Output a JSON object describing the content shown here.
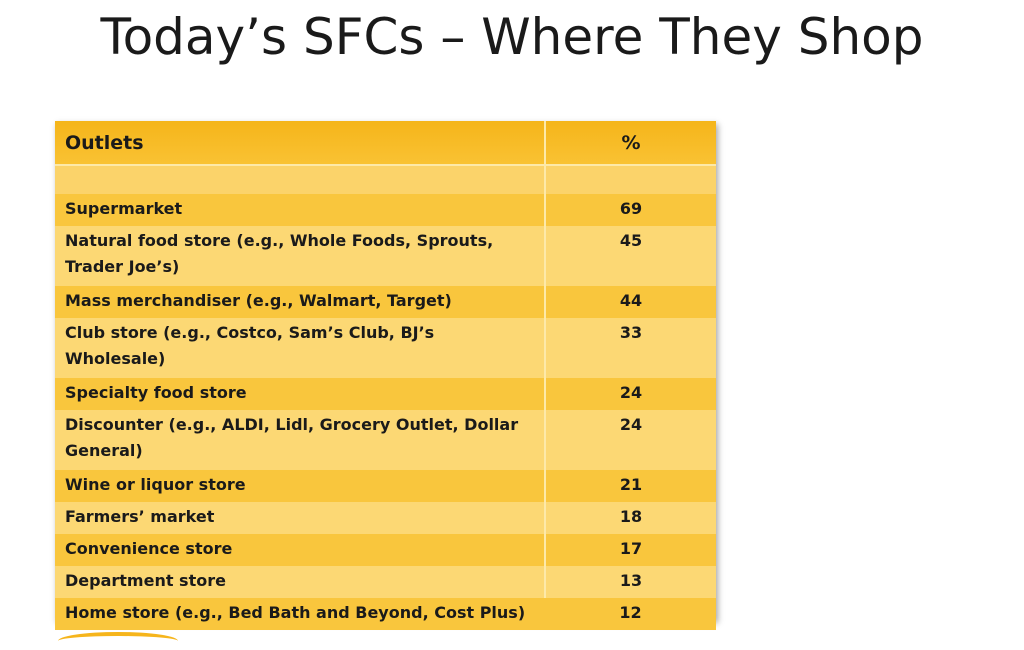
{
  "title": "Today’s SFCs – Where They Shop",
  "table": {
    "header": {
      "col1": "Outlets",
      "col2": "%"
    },
    "rows": [
      {
        "outlet": "Supermarket",
        "pct": "69"
      },
      {
        "outlet": "Natural food store (e.g., Whole Foods, Sprouts, Trader Joe’s)",
        "pct": "45"
      },
      {
        "outlet": "Mass merchandiser (e.g., Walmart, Target)",
        "pct": "44"
      },
      {
        "outlet": "Club store (e.g., Costco, Sam’s Club, BJ’s Wholesale)",
        "pct": "33"
      },
      {
        "outlet": "Specialty food store",
        "pct": "24"
      },
      {
        "outlet": "Discounter (e.g., ALDI, Lidl, Grocery Outlet, Dollar General)",
        "pct": "24"
      },
      {
        "outlet": "Wine or liquor store",
        "pct": "21"
      },
      {
        "outlet": "Farmers’ market",
        "pct": "18"
      },
      {
        "outlet": "Convenience store",
        "pct": "17"
      },
      {
        "outlet": "Department store",
        "pct": "13"
      },
      {
        "outlet": "Home store (e.g., Bed Bath and Beyond, Cost Plus)",
        "pct": "12"
      }
    ]
  }
}
